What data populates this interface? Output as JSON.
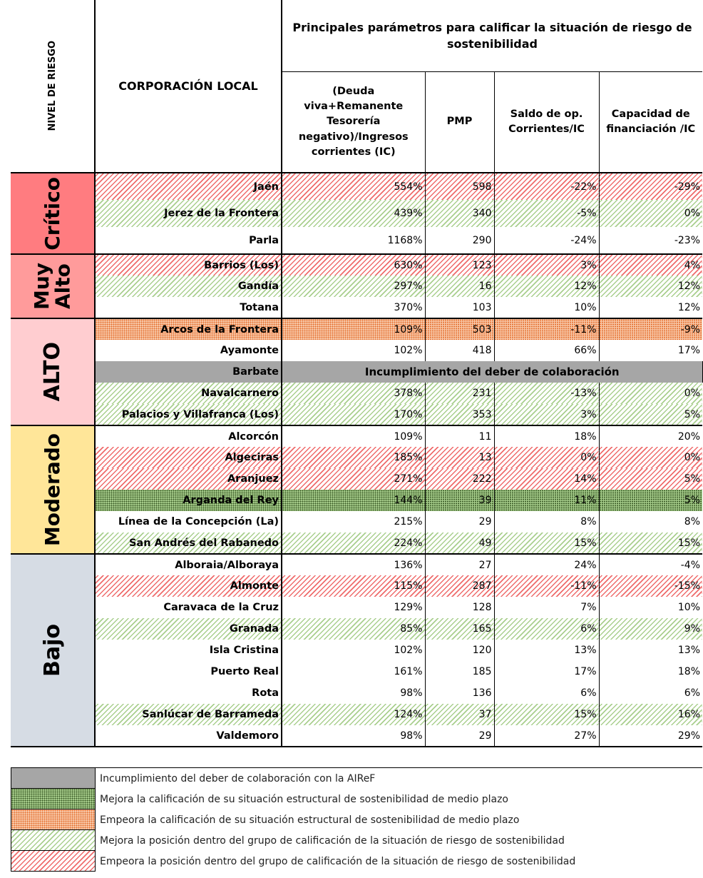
{
  "header": {
    "risk_level": "NIVEL DE RIESGO",
    "corporation": "CORPORACIÓN LOCAL",
    "parameters": "Principales parámetros para calificar la situación de riesgo de sostenibilidad",
    "columns": [
      "(Deuda viva+Remanente Tesorería negativo)/Ingresos corrientes (IC)",
      "PMP",
      "Saldo de op. Corrientes/IC",
      "Capacidad de financiación /IC"
    ]
  },
  "groups": [
    {
      "label": "Crítico",
      "color": "#ff7c80",
      "rows": [
        {
          "name": "Jaén",
          "values": [
            "554%",
            "598",
            "-22%",
            "-29%"
          ],
          "fill": "red-hatch"
        },
        {
          "name": "Jerez de la Frontera",
          "values": [
            "439%",
            "340",
            "-5%",
            "0%"
          ],
          "fill": "green-hatch"
        },
        {
          "name": "Parla",
          "values": [
            "1168%",
            "290",
            "-24%",
            "-23%"
          ],
          "fill": "none"
        }
      ]
    },
    {
      "label": "Muy Alto",
      "color": "#ff9b9b",
      "rows": [
        {
          "name": "Barrios (Los)",
          "values": [
            "630%",
            "123",
            "3%",
            "4%"
          ],
          "fill": "red-hatch"
        },
        {
          "name": "Gandía",
          "values": [
            "297%",
            "16",
            "12%",
            "12%"
          ],
          "fill": "green-hatch"
        },
        {
          "name": "Totana",
          "values": [
            "370%",
            "103",
            "10%",
            "12%"
          ],
          "fill": "none"
        }
      ]
    },
    {
      "label": "ALTO",
      "color": "#ffcdd0",
      "rows": [
        {
          "name": "Arcos de la Frontera",
          "values": [
            "109%",
            "503",
            "-11%",
            "-9%"
          ],
          "fill": "orange-dots"
        },
        {
          "name": "Ayamonte",
          "values": [
            "102%",
            "418",
            "66%",
            "17%"
          ],
          "fill": "none"
        },
        {
          "name": "Barbate",
          "note": "Incumplimiento del deber de colaboración",
          "fill": "gray"
        },
        {
          "name": "Navalcarnero",
          "values": [
            "378%",
            "231",
            "-13%",
            "0%"
          ],
          "fill": "green-hatch"
        },
        {
          "name": "Palacios y Villafranca (Los)",
          "values": [
            "170%",
            "353",
            "3%",
            "5%"
          ],
          "fill": "green-hatch"
        }
      ]
    },
    {
      "label": "Moderado",
      "color": "#ffe699",
      "rows": [
        {
          "name": "Alcorcón",
          "values": [
            "109%",
            "11",
            "18%",
            "20%"
          ],
          "fill": "none"
        },
        {
          "name": "Algeciras",
          "values": [
            "185%",
            "13",
            "0%",
            "0%"
          ],
          "fill": "red-hatch"
        },
        {
          "name": "Aranjuez",
          "values": [
            "271%",
            "222",
            "14%",
            "5%"
          ],
          "fill": "red-hatch"
        },
        {
          "name": "Arganda del Rey",
          "values": [
            "144%",
            "39",
            "11%",
            "5%"
          ],
          "fill": "green-dots"
        },
        {
          "name": "Línea de la Concepción (La)",
          "values": [
            "215%",
            "29",
            "8%",
            "8%"
          ],
          "fill": "none"
        },
        {
          "name": "San Andrés del Rabanedo",
          "values": [
            "224%",
            "49",
            "15%",
            "15%"
          ],
          "fill": "green-hatch"
        }
      ]
    },
    {
      "label": "Bajo",
      "color": "#d6dce4",
      "rows": [
        {
          "name": "Alboraia/Alboraya",
          "values": [
            "136%",
            "27",
            "24%",
            "-4%"
          ],
          "fill": "none"
        },
        {
          "name": "Almonte",
          "values": [
            "115%",
            "287",
            "-11%",
            "-15%"
          ],
          "fill": "red-hatch"
        },
        {
          "name": "Caravaca de la Cruz",
          "values": [
            "129%",
            "128",
            "7%",
            "10%"
          ],
          "fill": "none"
        },
        {
          "name": "Granada",
          "values": [
            "85%",
            "165",
            "6%",
            "9%"
          ],
          "fill": "green-hatch"
        },
        {
          "name": "Isla Cristina",
          "values": [
            "102%",
            "120",
            "13%",
            "13%"
          ],
          "fill": "none"
        },
        {
          "name": "Puerto Real",
          "values": [
            "161%",
            "185",
            "17%",
            "18%"
          ],
          "fill": "none"
        },
        {
          "name": "Rota",
          "values": [
            "98%",
            "136",
            "6%",
            "6%"
          ],
          "fill": "none"
        },
        {
          "name": "Sanlúcar de Barrameda",
          "values": [
            "124%",
            "37",
            "15%",
            "16%"
          ],
          "fill": "green-hatch"
        },
        {
          "name": "Valdemoro",
          "values": [
            "98%",
            "29",
            "27%",
            "29%"
          ],
          "fill": "none"
        }
      ]
    }
  ],
  "legend": [
    {
      "label": "Incumplimiento del deber de colaboración con la AIReF",
      "fill": "gray"
    },
    {
      "label": "Mejora la calificación de su situación estructural de sostenibilidad de medio plazo",
      "fill": "green-dots"
    },
    {
      "label": "Empeora la calificación de su situación estructural de sostenibilidad de medio plazo",
      "fill": "orange-dots"
    },
    {
      "label": "Mejora la posición dentro del grupo de calificación de la situación de riesgo de sostenibilidad",
      "fill": "green-hatch"
    },
    {
      "label": "Empeora la posición dentro del grupo de calificación de la situación de riesgo de sostenibilidad",
      "fill": "red-hatch"
    }
  ]
}
